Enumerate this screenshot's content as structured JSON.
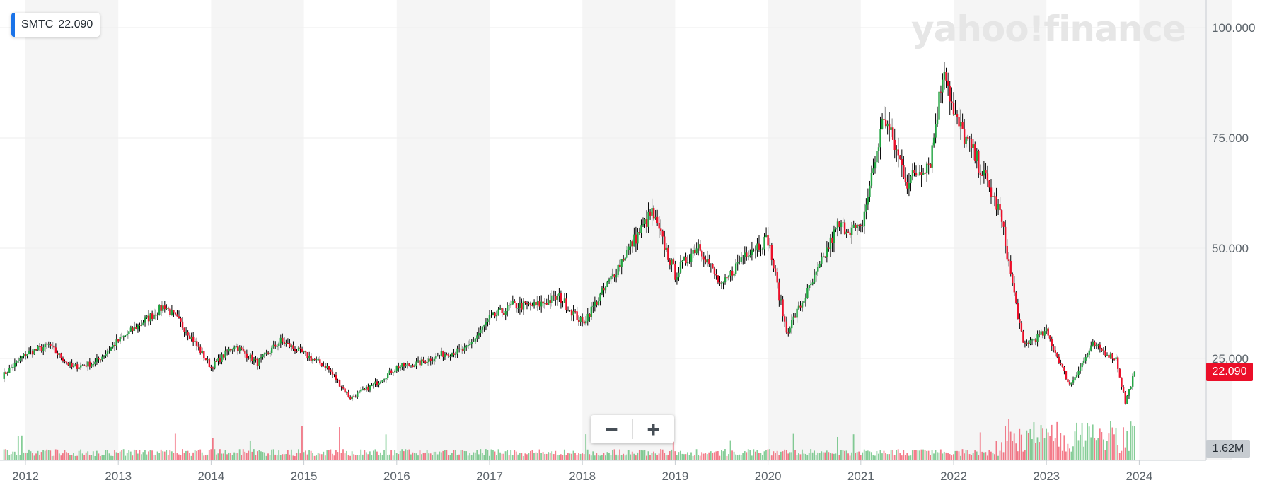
{
  "ticker": {
    "symbol": "SMTC",
    "price": "22.090",
    "accent_color": "#1a73e8"
  },
  "watermark": "yahoo!finance",
  "zoom": {
    "out_label": "−",
    "in_label": "+"
  },
  "last_price_label": "22.090",
  "volume_label": "1.62M",
  "colors": {
    "up": "#21a441",
    "down": "#eb0f29",
    "wick": "#000000",
    "band": "#f5f5f5",
    "grid": "#eeeeee"
  },
  "chart_data": {
    "type": "candlestick",
    "title": "",
    "xlabel": "",
    "ylabel": "",
    "ylim": [
      0,
      105
    ],
    "xlim": [
      "2011-09-01",
      "2024-12-31"
    ],
    "y_ticks": [
      100,
      75,
      50,
      25
    ],
    "y_tick_labels": [
      "100.000",
      "75.000",
      "50.000",
      "25.000"
    ],
    "x_ticks": [
      2012,
      2013,
      2014,
      2015,
      2016,
      2017,
      2018,
      2019,
      2020,
      2021,
      2022,
      2023,
      2024
    ],
    "x_tick_labels": [
      "2012",
      "2013",
      "2014",
      "2015",
      "2016",
      "2017",
      "2018",
      "2019",
      "2020",
      "2021",
      "2022",
      "2023",
      "2024"
    ],
    "grid": true,
    "series": [
      {
        "name": "SMTC",
        "x": [
          2011.75,
          2012.0,
          2012.25,
          2012.5,
          2012.75,
          2013.0,
          2013.25,
          2013.5,
          2013.75,
          2014.0,
          2014.25,
          2014.5,
          2014.75,
          2015.0,
          2015.25,
          2015.5,
          2015.75,
          2016.0,
          2016.25,
          2016.5,
          2016.75,
          2017.0,
          2017.25,
          2017.5,
          2017.75,
          2018.0,
          2018.25,
          2018.5,
          2018.75,
          2019.0,
          2019.25,
          2019.5,
          2019.75,
          2020.0,
          2020.2,
          2020.5,
          2020.75,
          2021.0,
          2021.25,
          2021.5,
          2021.75,
          2021.9,
          2022.0,
          2022.25,
          2022.5,
          2022.75,
          2023.0,
          2023.25,
          2023.5,
          2023.75,
          2023.85,
          2023.95
        ],
        "close": [
          21,
          26,
          28,
          23,
          24,
          29,
          33,
          37,
          31,
          23,
          28,
          24,
          29,
          26,
          23,
          16,
          19,
          23,
          24,
          26,
          27,
          34,
          37,
          37,
          39,
          33,
          41,
          50,
          58,
          44,
          51,
          41,
          49,
          52,
          31,
          43,
          55,
          54,
          80,
          65,
          70,
          92,
          80,
          70,
          58,
          28,
          31,
          19,
          28,
          25,
          15,
          22
        ]
      }
    ],
    "volume_series": {
      "name": "Volume",
      "last": "1.62M"
    }
  }
}
